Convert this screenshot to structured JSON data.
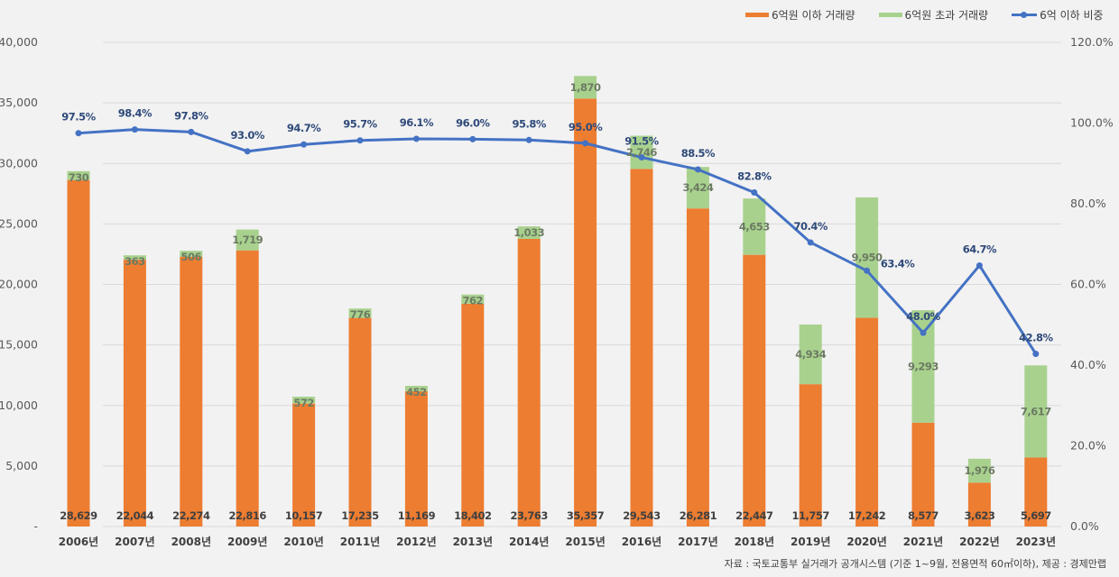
{
  "legend": {
    "items": [
      {
        "label": "6억원 이하 거래량",
        "color": "#ed7d31",
        "kind": "bar"
      },
      {
        "label": "6억원 초과 거래량",
        "color": "#a9d18e",
        "kind": "bar"
      },
      {
        "label": "6억 이하 비중",
        "color": "#4472c4",
        "kind": "line"
      }
    ]
  },
  "source": "자료 : 국토교통부 실거래가 공개시스템 (기준 1~9월, 전용면적 60㎡이하), 제공 : 경제만랩",
  "chart_data": {
    "type": "bar",
    "stacked": true,
    "title": "",
    "xlabel": "",
    "ylabel": "",
    "y2label": "",
    "categories": [
      "2006년",
      "2007년",
      "2008년",
      "2009년",
      "2010년",
      "2011년",
      "2012년",
      "2013년",
      "2014년",
      "2015년",
      "2016년",
      "2017년",
      "2018년",
      "2019년",
      "2020년",
      "2021년",
      "2022년",
      "2023년"
    ],
    "series": [
      {
        "name": "6억원 이하 거래량",
        "type": "bar",
        "axis": "left",
        "color": "#ed7d31",
        "values": [
          28629,
          22044,
          22274,
          22816,
          10157,
          17235,
          11169,
          18402,
          23763,
          35357,
          29543,
          26281,
          22447,
          11757,
          17242,
          8577,
          3623,
          5697
        ],
        "labels": [
          "28,629",
          "22,044",
          "22,274",
          "22,816",
          "10,157",
          "17,235",
          "11,169",
          "18,402",
          "23,763",
          "35,357",
          "29,543",
          "26,281",
          "22,447",
          "11,757",
          "17,242",
          "8,577",
          "3,623",
          "5,697"
        ]
      },
      {
        "name": "6억원 초과 거래량",
        "type": "bar",
        "axis": "left",
        "color": "#a9d18e",
        "values": [
          730,
          363,
          506,
          1719,
          572,
          776,
          452,
          762,
          1033,
          1870,
          2746,
          3424,
          4653,
          4934,
          9950,
          9293,
          1976,
          7617
        ],
        "labels": [
          "730",
          "363",
          "506",
          "1,719",
          "572",
          "776",
          "452",
          "762",
          "1,033",
          "1,870",
          "2,746",
          "3,424",
          "4,653",
          "4,934",
          "9,950",
          "9,293",
          "1,976",
          "7,617"
        ]
      },
      {
        "name": "6억 이하 비중",
        "type": "line",
        "axis": "right",
        "color": "#4472c4",
        "values": [
          97.5,
          98.4,
          97.8,
          93.0,
          94.7,
          95.7,
          96.1,
          96.0,
          95.8,
          95.0,
          91.5,
          88.5,
          82.8,
          70.4,
          63.4,
          48.0,
          64.7,
          42.8
        ],
        "labels": [
          "97.5%",
          "98.4%",
          "97.8%",
          "93.0%",
          "94.7%",
          "95.7%",
          "96.1%",
          "96.0%",
          "95.8%",
          "95.0%",
          "91.5%",
          "88.5%",
          "82.8%",
          "70.4%",
          "63.4%",
          "48.0%",
          "64.7%",
          "42.8%"
        ]
      }
    ],
    "y_left": {
      "range": [
        0,
        40000
      ],
      "ticks": [
        0,
        5000,
        10000,
        15000,
        20000,
        25000,
        30000,
        35000,
        40000
      ],
      "tick_labels": [
        "-",
        "5,000",
        "10,000",
        "15,000",
        "20,000",
        "25,000",
        "30,000",
        "35,000",
        "40,000"
      ]
    },
    "y_right": {
      "range": [
        0,
        120
      ],
      "ticks": [
        0,
        20,
        40,
        60,
        80,
        100,
        120
      ],
      "tick_labels": [
        "0.0%",
        "20.0%",
        "40.0%",
        "60.0%",
        "80.0%",
        "100.0%",
        "120.0%"
      ]
    },
    "grid": true,
    "legend_position": "top-right"
  }
}
